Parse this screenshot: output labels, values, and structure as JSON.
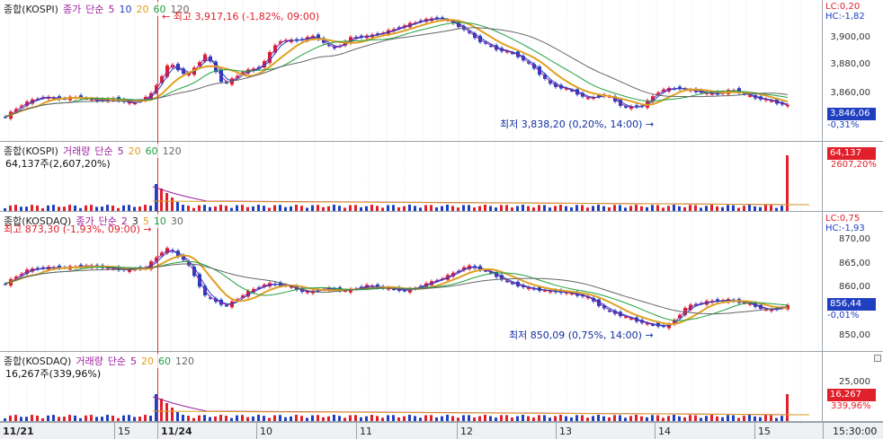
{
  "kospi": {
    "title": [
      "종합(KOSPI)",
      "종가",
      "단순",
      "5",
      "10",
      "20",
      "60",
      "120"
    ],
    "title_colors": [
      "#222222",
      "#a020a0",
      "#a020a0",
      "#a020a0",
      "#2040c0",
      "#e0a020",
      "#20a040",
      "#666666"
    ],
    "high_label": "최고 3,917,16 (-1,82%, 09:00)",
    "low_label": "최저 3,838,20 (0,20%, 14:00)",
    "lc": "LC:0,20",
    "hc": "HC:-1,82",
    "ticks": [
      "3,900,00",
      "3,880,00",
      "3,860,00"
    ],
    "price": "3,846,06",
    "change": "-0,31%"
  },
  "kospi_vol": {
    "title": [
      "종합(KOSPI)",
      "거래량",
      "단순",
      "5",
      "20",
      "60",
      "120"
    ],
    "title_colors": [
      "#222222",
      "#a020a0",
      "#a020a0",
      "#a020a0",
      "#e0a020",
      "#20a040",
      "#666666"
    ],
    "sub": "64,137주(2,607,20%)",
    "value": "64,137",
    "ratio": "2607,20%"
  },
  "kosdaq": {
    "title": [
      "종합(KOSDAQ)",
      "종가",
      "단순",
      "2",
      "3",
      "5",
      "10",
      "30"
    ],
    "title_colors": [
      "#222222",
      "#a020a0",
      "#a020a0",
      "#a020a0",
      "#222222",
      "#e0a020",
      "#20a040",
      "#666666"
    ],
    "high_label": "최고 873,30 (-1,93%, 09:00)",
    "low_label": "최저 850,09 (0,75%, 14:00)",
    "lc": "LC:0,75",
    "hc": "HC:-1,93",
    "ticks": [
      "870,00",
      "865,00",
      "860,00",
      "850,00"
    ],
    "price": "856,44",
    "change": "-0,01%"
  },
  "kosdaq_vol": {
    "title": [
      "종합(KOSDAQ)",
      "거래량",
      "단순",
      "5",
      "20",
      "60",
      "120"
    ],
    "title_colors": [
      "#222222",
      "#a020a0",
      "#a020a0",
      "#a020a0",
      "#e0a020",
      "#20a040",
      "#666666"
    ],
    "sub": "16,267주(339,96%)",
    "tick": "25,000",
    "value": "16,267",
    "ratio": "339,96%"
  },
  "xaxis": {
    "labels": [
      "11/21",
      "15",
      "11/24",
      "10",
      "11",
      "12",
      "13",
      "14",
      "15"
    ],
    "time": "15:30:00"
  },
  "colors": {
    "up": "#e0202a",
    "down": "#2040c0",
    "ma5": "#a020a0",
    "ma10": "#2040c0",
    "ma20": "#e0a020",
    "ma60": "#20a040",
    "ma120": "#666666"
  }
}
